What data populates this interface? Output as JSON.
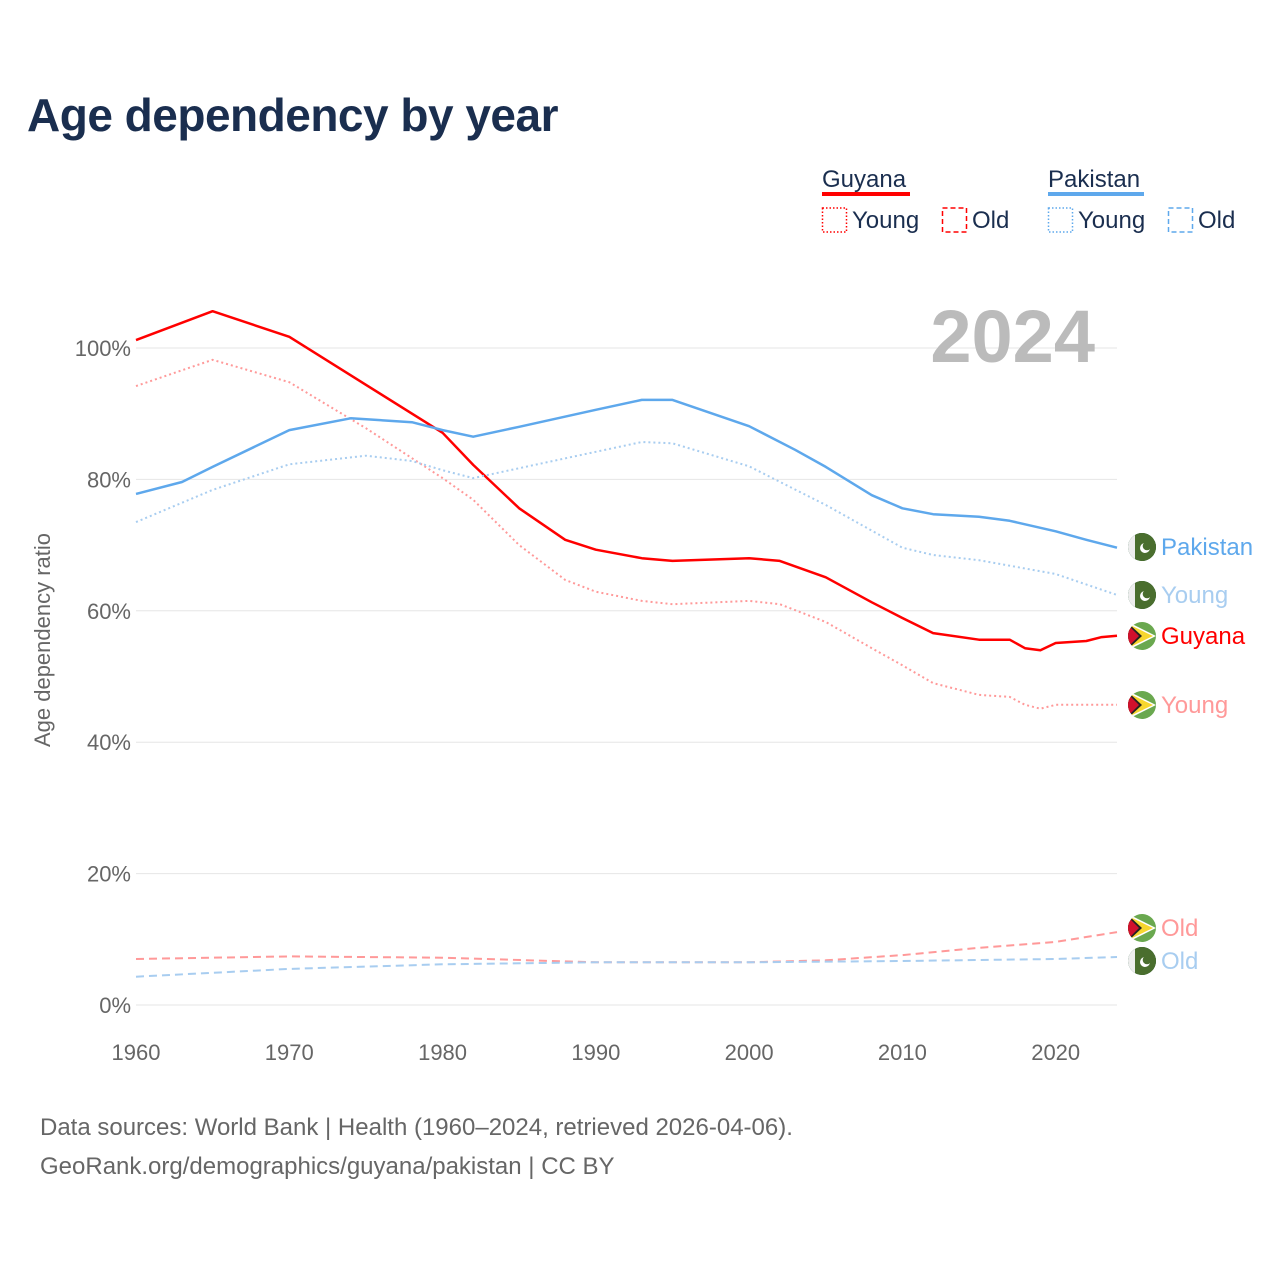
{
  "title": "Age dependency by year",
  "year_label": "2024",
  "source_line1": "Data sources: World Bank | Health (1960–2024, retrieved 2026-04-06).",
  "source_line2": "GeoRank.org/demographics/guyana/pakistan | CC BY",
  "legend": {
    "groups": [
      {
        "name": "Guyana",
        "color": "#ff0000",
        "items": [
          "Young",
          "Old"
        ]
      },
      {
        "name": "Pakistan",
        "color": "#5ea8ec",
        "items": [
          "Young",
          "Old"
        ]
      }
    ]
  },
  "chart_data": {
    "type": "line",
    "title": "Age dependency by year",
    "xlabel": "",
    "ylabel": "Age dependency ratio",
    "xlim": [
      1960,
      2024
    ],
    "ylim": [
      0,
      110
    ],
    "xticks": [
      1960,
      1970,
      1980,
      1990,
      2000,
      2010,
      2020
    ],
    "yticks": [
      0,
      20,
      40,
      60,
      80,
      100
    ],
    "ytick_labels": [
      "0%",
      "20%",
      "40%",
      "60%",
      "80%",
      "100%"
    ],
    "grid": true,
    "series": [
      {
        "name": "Guyana",
        "end_label": "Guyana",
        "color": "#ff0000",
        "style": "solid",
        "flag": "guyana",
        "x": [
          1960,
          1965,
          1970,
          1975,
          1980,
          1982,
          1985,
          1988,
          1990,
          1993,
          1995,
          2000,
          2002,
          2005,
          2008,
          2010,
          2012,
          2015,
          2017,
          2018,
          2019,
          2020,
          2022,
          2023,
          2024
        ],
        "y": [
          101.2,
          105.6,
          101.7,
          94.4,
          87.1,
          82.2,
          75.6,
          70.8,
          69.3,
          68,
          67.6,
          68,
          67.6,
          65.1,
          61.3,
          58.9,
          56.6,
          55.6,
          55.6,
          54.3,
          54,
          55.1,
          55.4,
          56,
          56.2
        ]
      },
      {
        "name": "Guyana Young",
        "end_label": "Young",
        "color": "#ff9999",
        "style": "dotted",
        "flag": "guyana",
        "x": [
          1960,
          1965,
          1970,
          1975,
          1980,
          1982,
          1985,
          1988,
          1990,
          1993,
          1995,
          2000,
          2002,
          2005,
          2008,
          2010,
          2012,
          2015,
          2017,
          2018,
          2019,
          2020,
          2024
        ],
        "y": [
          94.2,
          98.2,
          94.8,
          87.8,
          80.2,
          76.9,
          70,
          64.7,
          62.9,
          61.5,
          61,
          61.5,
          61,
          58.3,
          54.3,
          51.7,
          49,
          47.2,
          46.9,
          45.7,
          45.1,
          45.7,
          45.7
        ]
      },
      {
        "name": "Guyana Old",
        "end_label": "Old",
        "color": "#ff9999",
        "style": "dashed",
        "flag": "guyana",
        "x": [
          1960,
          1970,
          1980,
          1990,
          2000,
          2005,
          2010,
          2015,
          2020,
          2024
        ],
        "y": [
          7,
          7.4,
          7.2,
          6.5,
          6.5,
          6.8,
          7.6,
          8.7,
          9.6,
          11.1
        ]
      },
      {
        "name": "Pakistan",
        "end_label": "Pakistan",
        "color": "#5ea8ec",
        "style": "solid",
        "flag": "pakistan",
        "x": [
          1960,
          1963,
          1965,
          1970,
          1974,
          1978,
          1980,
          1982,
          1985,
          1990,
          1993,
          1995,
          2000,
          2003,
          2005,
          2008,
          2010,
          2012,
          2015,
          2017,
          2020,
          2022,
          2024
        ],
        "y": [
          77.8,
          79.6,
          81.9,
          87.5,
          89.3,
          88.7,
          87.5,
          86.5,
          88,
          90.6,
          92.1,
          92.1,
          88.1,
          84.5,
          81.9,
          77.6,
          75.6,
          74.7,
          74.3,
          73.7,
          72.1,
          70.8,
          69.6
        ]
      },
      {
        "name": "Pakistan Young",
        "end_label": "Young",
        "color": "#a8cdf0",
        "style": "dotted",
        "flag": "pakistan",
        "x": [
          1960,
          1965,
          1970,
          1975,
          1978,
          1980,
          1982,
          1985,
          1990,
          1993,
          1995,
          2000,
          2005,
          2010,
          2012,
          2015,
          2020,
          2024
        ],
        "y": [
          73.5,
          78.4,
          82.3,
          83.6,
          82.8,
          81.4,
          80.2,
          81.7,
          84.2,
          85.7,
          85.5,
          82,
          76.1,
          69.6,
          68.5,
          67.7,
          65.6,
          62.4
        ]
      },
      {
        "name": "Pakistan Old",
        "end_label": "Old",
        "color": "#a8cdf0",
        "style": "dashed",
        "flag": "pakistan",
        "x": [
          1960,
          1970,
          1980,
          1990,
          2000,
          2010,
          2020,
          2024
        ],
        "y": [
          4.3,
          5.5,
          6.2,
          6.5,
          6.5,
          6.7,
          7,
          7.3
        ]
      }
    ]
  }
}
